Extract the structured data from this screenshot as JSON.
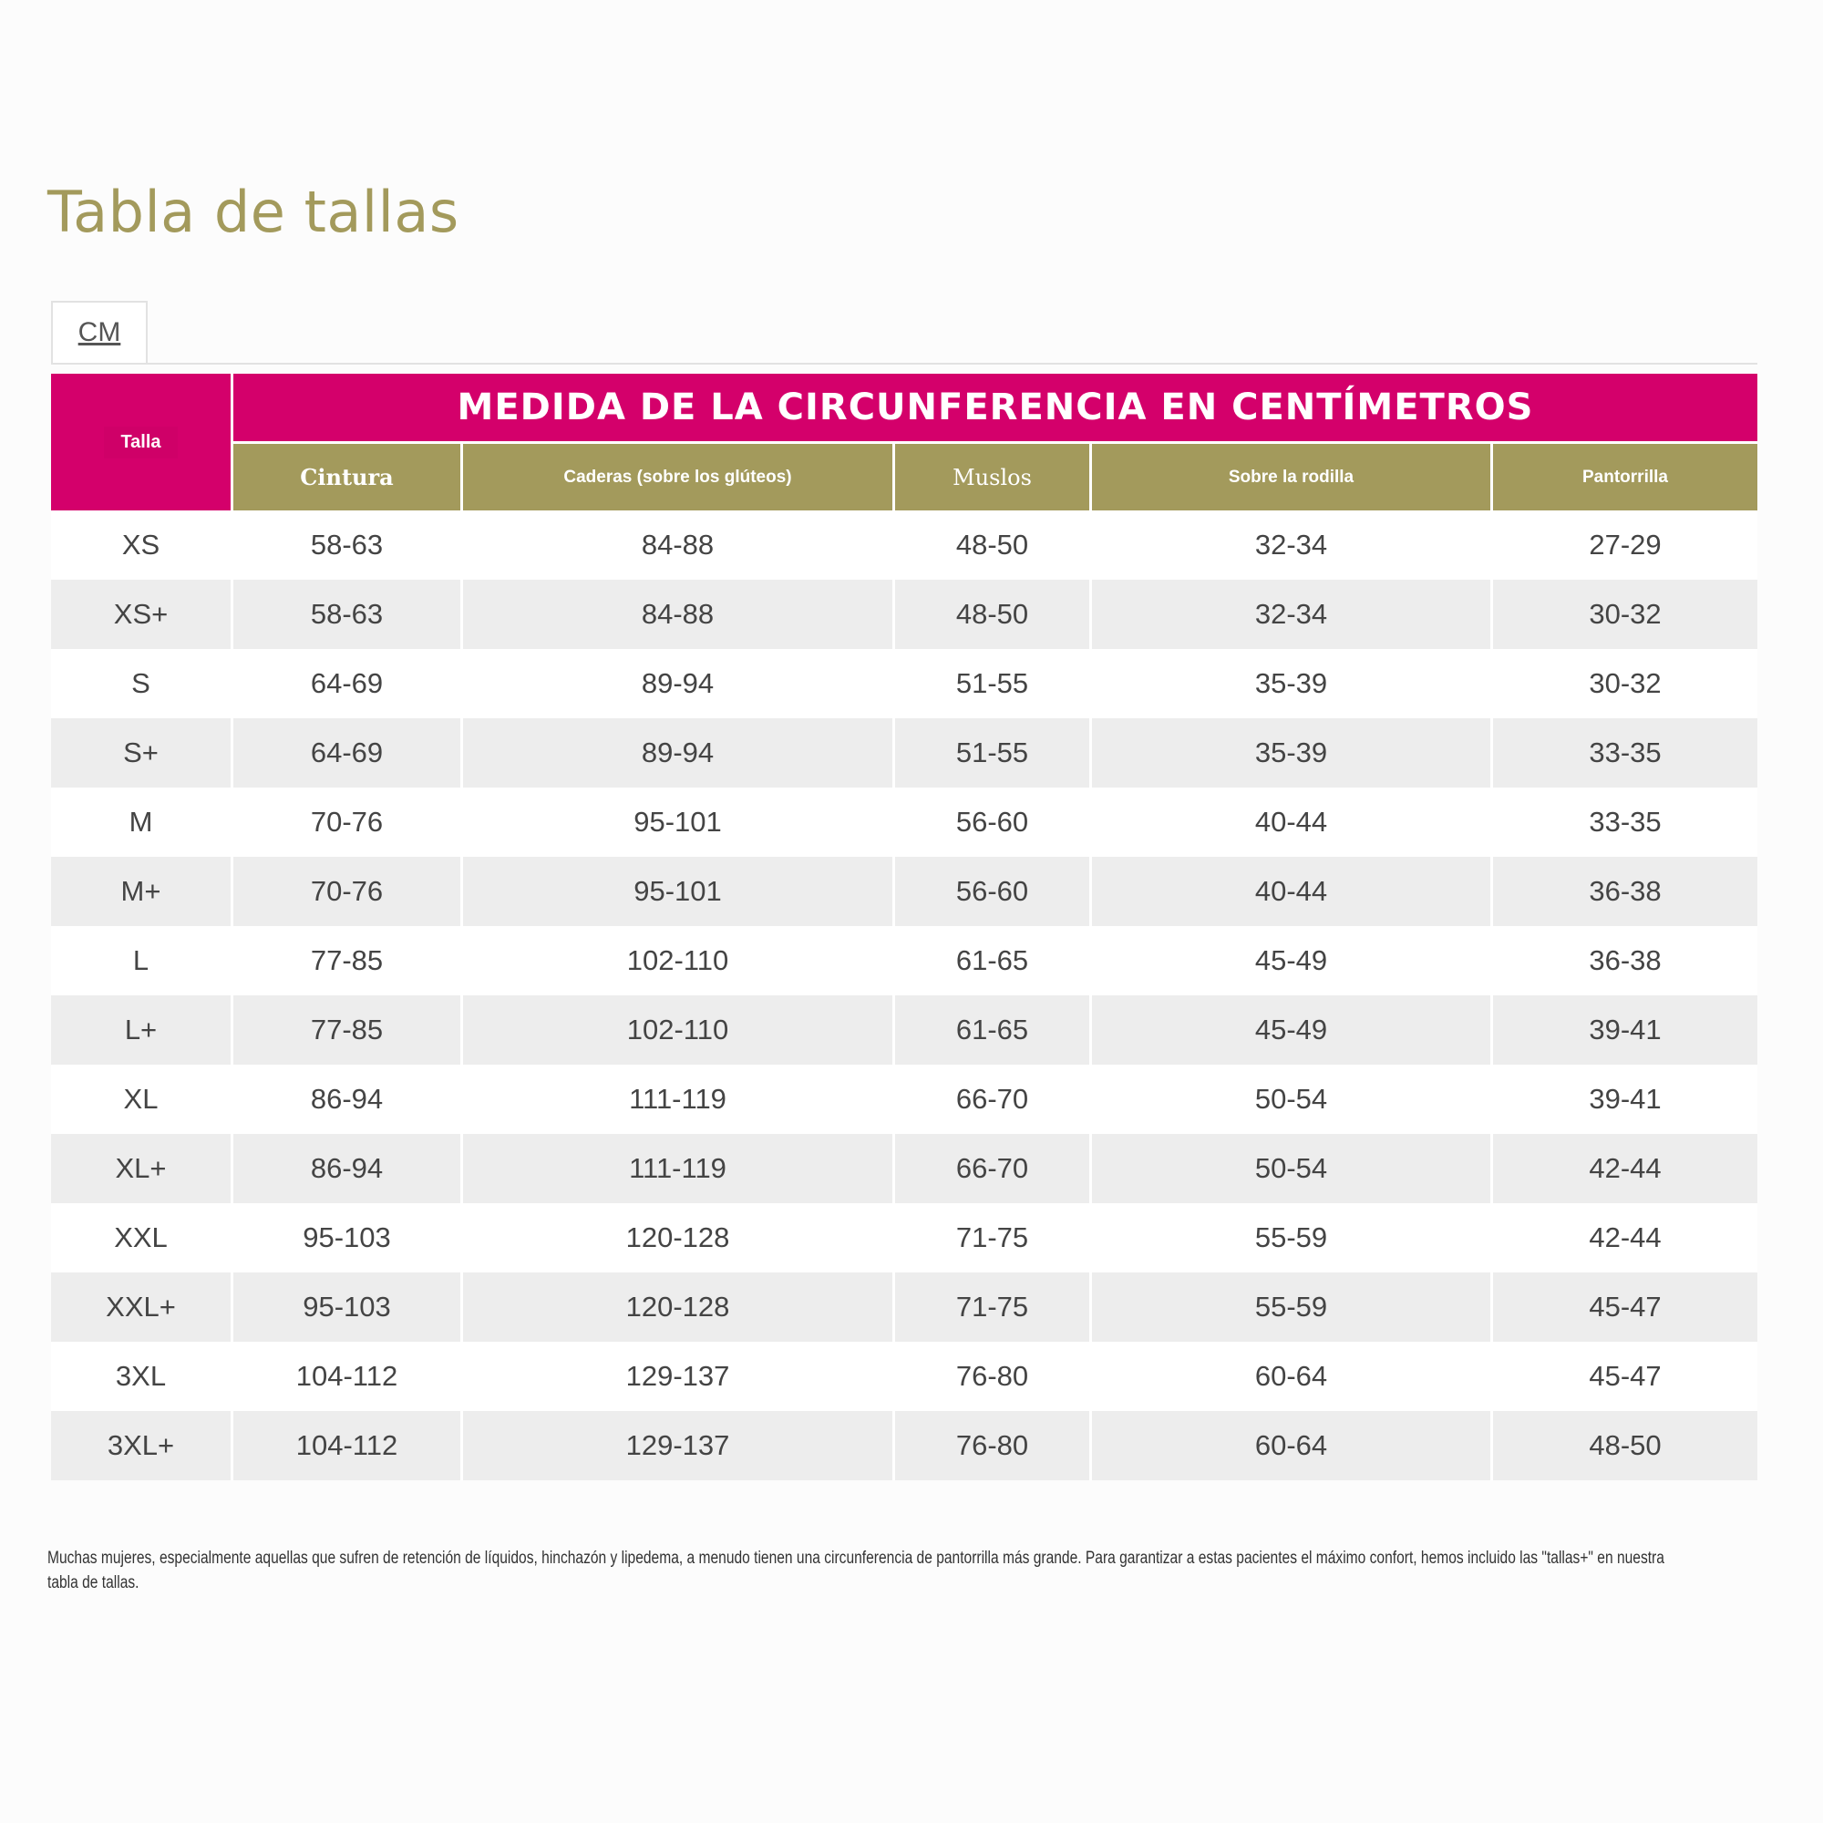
{
  "page": {
    "title": "Tabla de tallas",
    "unit_tab": "CM",
    "footnote": "Muchas mujeres, especialmente aquellas que sufren de retención de líquidos, hinchazón y lipedema, a menudo tienen una circunferencia de pantorrilla más grande. Para garantizar a estas pacientes el máximo confort, hemos incluido las \"tallas+\" en nuestra tabla de tallas."
  },
  "table": {
    "size_header": "Talla",
    "group_header": "MEDIDA DE LA CIRCUNFERENCIA EN CENTÍMETROS",
    "columns": [
      "Cintura",
      "Caderas (sobre los glúteos)",
      "Muslos",
      "Sobre la rodilla",
      "Pantorrilla"
    ],
    "rows": [
      [
        "XS",
        "58-63",
        "84-88",
        "48-50",
        "32-34",
        "27-29"
      ],
      [
        "XS+",
        "58-63",
        "84-88",
        "48-50",
        "32-34",
        "30-32"
      ],
      [
        "S",
        "64-69",
        "89-94",
        "51-55",
        "35-39",
        "30-32"
      ],
      [
        "S+",
        "64-69",
        "89-94",
        "51-55",
        "35-39",
        "33-35"
      ],
      [
        "M",
        "70-76",
        "95-101",
        "56-60",
        "40-44",
        "33-35"
      ],
      [
        "M+",
        "70-76",
        "95-101",
        "56-60",
        "40-44",
        "36-38"
      ],
      [
        "L",
        "77-85",
        "102-110",
        "61-65",
        "45-49",
        "36-38"
      ],
      [
        "L+",
        "77-85",
        "102-110",
        "61-65",
        "45-49",
        "39-41"
      ],
      [
        "XL",
        "86-94",
        "111-119",
        "66-70",
        "50-54",
        "39-41"
      ],
      [
        "XL+",
        "86-94",
        "111-119",
        "66-70",
        "50-54",
        "42-44"
      ],
      [
        "XXL",
        "95-103",
        "120-128",
        "71-75",
        "55-59",
        "42-44"
      ],
      [
        "XXL+",
        "95-103",
        "120-128",
        "71-75",
        "55-59",
        "45-47"
      ],
      [
        "3XL",
        "104-112",
        "129-137",
        "76-80",
        "60-64",
        "45-47"
      ],
      [
        "3XL+",
        "104-112",
        "129-137",
        "76-80",
        "60-64",
        "48-50"
      ]
    ]
  },
  "colors": {
    "accent_magenta": "#d4006b",
    "accent_olive": "#a39a5c",
    "row_stripe": "#ededed"
  }
}
